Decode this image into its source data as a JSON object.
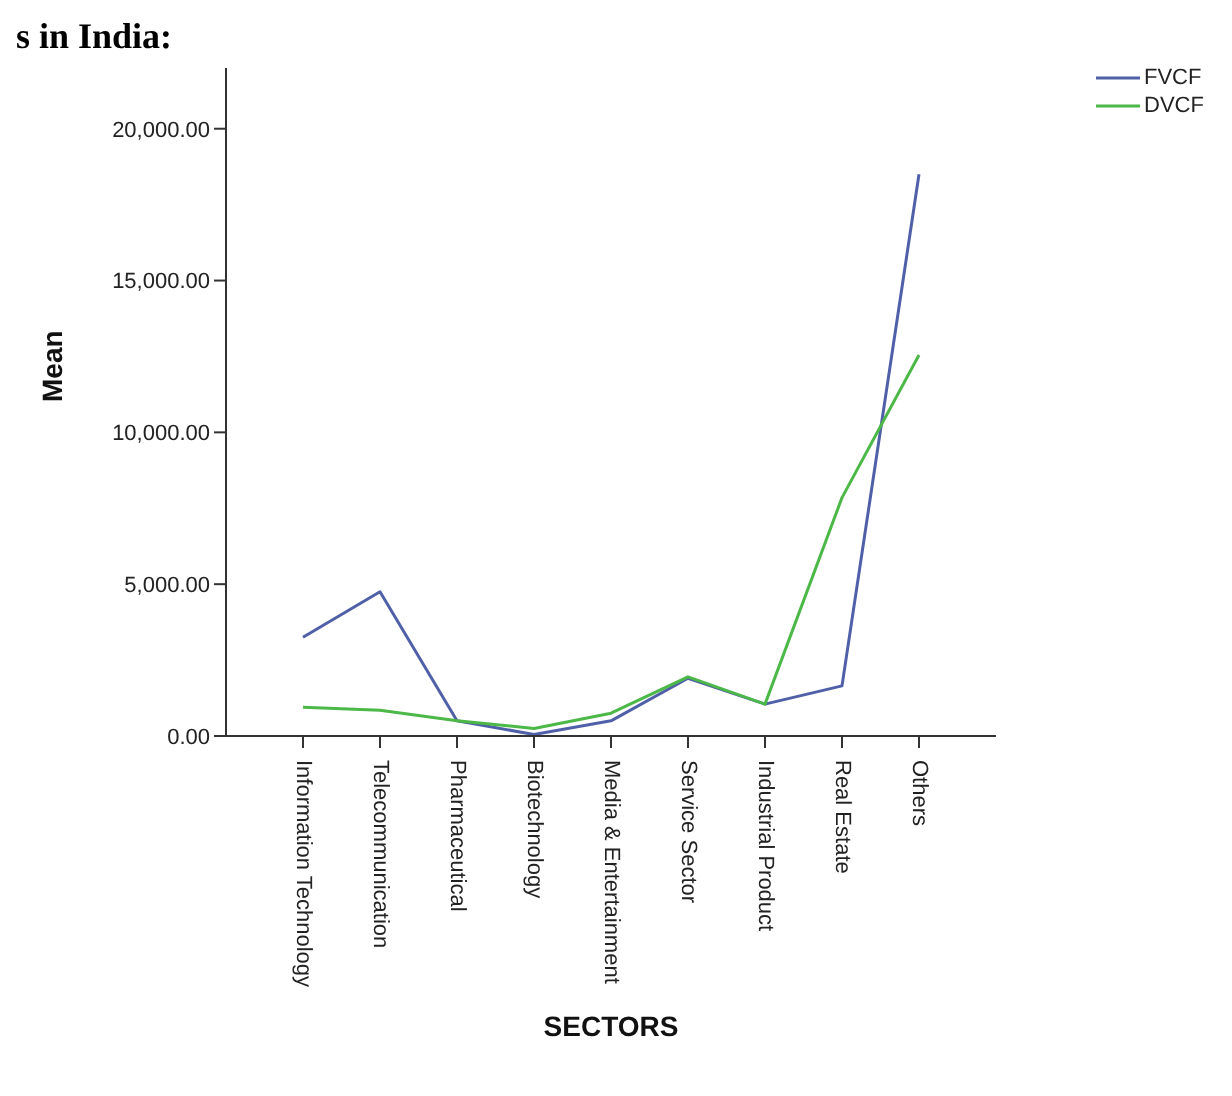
{
  "chart_data": {
    "type": "line",
    "title": "s in India:",
    "xlabel": "SECTORS",
    "ylabel": "Mean",
    "categories": [
      "Information Technology",
      "Telecommunication",
      "Pharmaceutical",
      "Biotechnology",
      "Media & Entertainment",
      "Service Sector",
      "Industrial Product",
      "Real Estate",
      "Others"
    ],
    "series": [
      {
        "name": "FVCF",
        "color": "#5060a8",
        "values": [
          3250,
          4750,
          500,
          50,
          500,
          1900,
          1050,
          1650,
          18500
        ]
      },
      {
        "name": "DVCF",
        "color": "#4cb848",
        "values": [
          950,
          850,
          500,
          250,
          750,
          1950,
          1050,
          7850,
          12550
        ]
      }
    ],
    "ylim": [
      0,
      22000
    ],
    "yticks": [
      {
        "value": 0,
        "label": "0.00"
      },
      {
        "value": 5000,
        "label": "5,000.00"
      },
      {
        "value": 10000,
        "label": "10,000.00"
      },
      {
        "value": 15000,
        "label": "15,000.00"
      },
      {
        "value": 20000,
        "label": "20,000.00"
      }
    ],
    "grid": false,
    "legend": "top right",
    "marker": "none",
    "line_style": "solid"
  }
}
